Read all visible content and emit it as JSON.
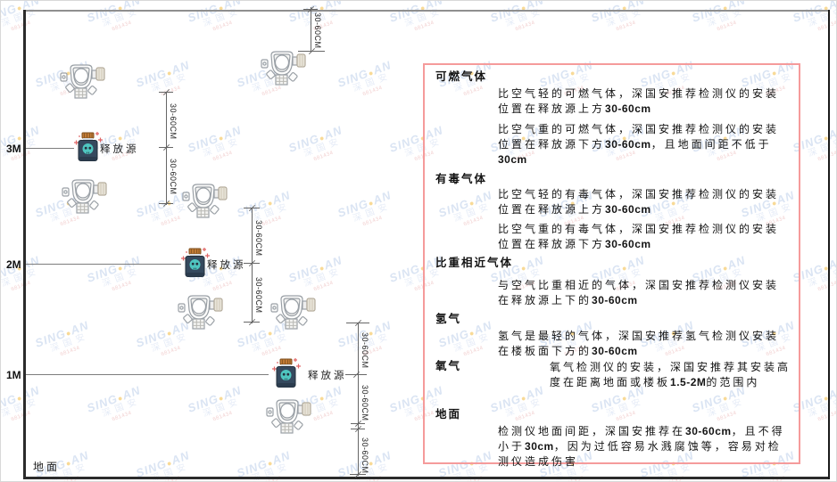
{
  "diagram": {
    "axis_labels": {
      "m3": "3M",
      "m2": "2M",
      "m1": "1M",
      "ground": "地面"
    },
    "release_source_label": "释放源",
    "dim_label": "30-60CM"
  },
  "panel": {
    "sections": [
      {
        "heading": "可燃气体",
        "paragraphs": [
          "比空气轻的可燃气体，深国安推荐检测仪的安装位置在释放源上方30-60cm",
          "比空气重的可燃气体，深国安推荐检测仪的安装位置在释放源下方30-60cm，且地面间距不低于30cm"
        ]
      },
      {
        "heading": "有毒气体",
        "paragraphs": [
          "比空气轻的有毒气体，深国安推荐检测仪的安装位置在释放源上方30-60cm",
          "比空气重的有毒气体，深国安推荐检测仪的安装位置在释放源下方30-60cm"
        ]
      },
      {
        "heading": "比重相近气体",
        "paragraphs": [
          "与空气比重相近的气体，深国安推荐检测仪安装在释放源上下的30-60cm"
        ]
      },
      {
        "heading": "氢气",
        "paragraphs": [
          "氢气是最轻的气体，深国安推荐氢气检测仪安装在楼板面下方的30-60cm"
        ]
      },
      {
        "heading": "氧气",
        "paragraphs": [
          "氧气检测仪的安装，深国安推荐其安装高度在距离地面或楼板1.5-2M的范围内"
        ]
      },
      {
        "heading": "地面",
        "paragraphs": [
          "检测仪地面间距，深国安推荐在30-60cm，且不得小于30cm，因为过低容易水溅腐蚀等，容易对检测仪造成伤害"
        ]
      }
    ]
  },
  "watermark": {
    "brand": "SING",
    "brand2": "AN",
    "dot": "●",
    "cn": "深国安",
    "code": "681434"
  },
  "colors": {
    "panel_border": "#f59b9b",
    "bottle": "#35495e",
    "cap_orange": "#c07a35",
    "skull_teal": "#4fc6c0",
    "watermark_blue": "#b7cbe8"
  }
}
